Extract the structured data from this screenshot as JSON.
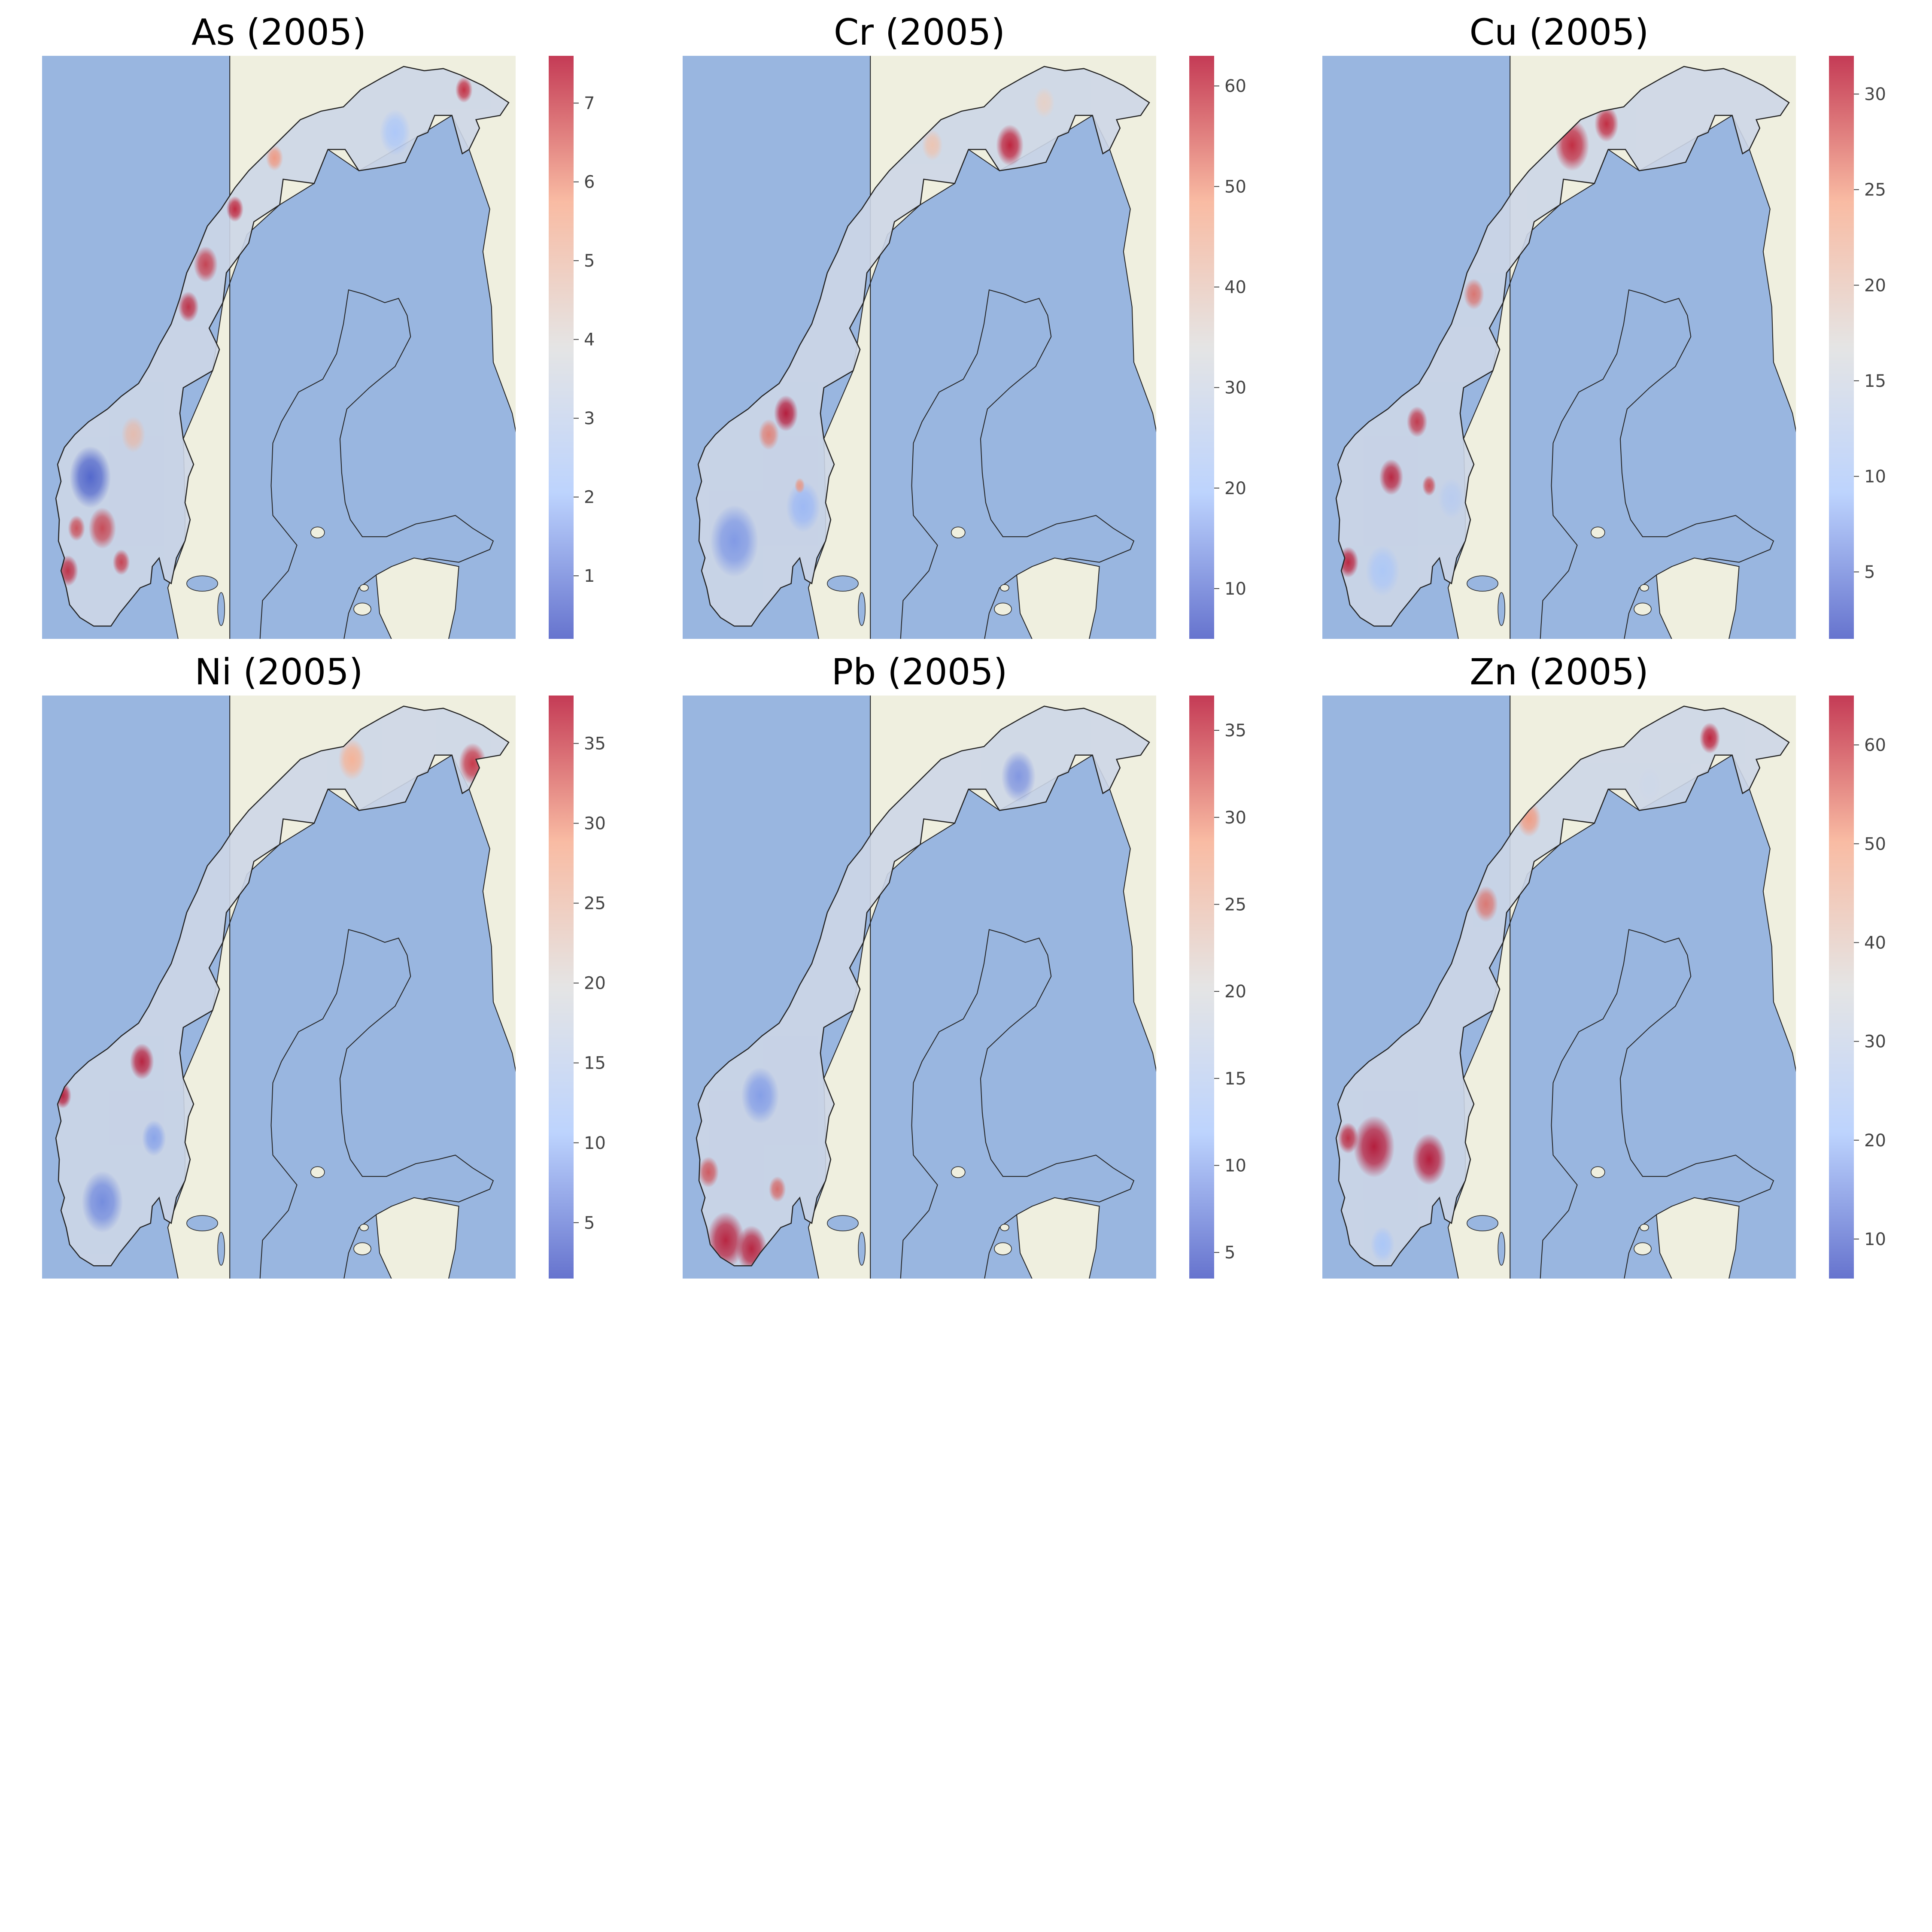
{
  "figure": {
    "panels": [
      {
        "title": "As (2005)",
        "colorbar": {
          "min": 0.2,
          "max": 7.6,
          "ticks": [
            1,
            2,
            3,
            4,
            5,
            6,
            7
          ]
        },
        "hotspots": [
          {
            "lon": 5.5,
            "lat": 59.3,
            "value": 7.2,
            "r": 0.6
          },
          {
            "lon": 6.0,
            "lat": 60.3,
            "value": 6.8,
            "r": 0.5
          },
          {
            "lon": 7.5,
            "lat": 60.3,
            "value": 6.9,
            "r": 0.8
          },
          {
            "lon": 8.6,
            "lat": 59.5,
            "value": 7.0,
            "r": 0.5
          },
          {
            "lon": 12.5,
            "lat": 65.5,
            "value": 7.2,
            "r": 0.6
          },
          {
            "lon": 13.5,
            "lat": 66.5,
            "value": 7.0,
            "r": 0.7
          },
          {
            "lon": 15.2,
            "lat": 67.8,
            "value": 7.4,
            "r": 0.5
          },
          {
            "lon": 17.5,
            "lat": 69.0,
            "value": 6.0,
            "r": 0.5
          },
          {
            "lon": 28.5,
            "lat": 70.6,
            "value": 7.3,
            "r": 0.5
          },
          {
            "lon": 6.8,
            "lat": 61.5,
            "value": 0.5,
            "r": 1.2
          },
          {
            "lon": 24.5,
            "lat": 69.6,
            "value": 2.0,
            "r": 0.9
          },
          {
            "lon": 9.3,
            "lat": 62.5,
            "value": 5.0,
            "r": 0.7
          }
        ]
      },
      {
        "title": "Cr (2005)",
        "colorbar": {
          "min": 5,
          "max": 63,
          "ticks": [
            10,
            20,
            30,
            40,
            50,
            60
          ]
        },
        "hotspots": [
          {
            "lon": 10.0,
            "lat": 63.0,
            "value": 62,
            "r": 0.7
          },
          {
            "lon": 9.0,
            "lat": 62.5,
            "value": 52,
            "r": 0.6
          },
          {
            "lon": 23.0,
            "lat": 69.3,
            "value": 62,
            "r": 0.8
          },
          {
            "lon": 7.0,
            "lat": 60.0,
            "value": 14,
            "r": 1.4
          },
          {
            "lon": 11.0,
            "lat": 60.8,
            "value": 18,
            "r": 1.0
          },
          {
            "lon": 10.8,
            "lat": 61.3,
            "value": 50,
            "r": 0.3
          },
          {
            "lon": 18.5,
            "lat": 69.3,
            "value": 42,
            "r": 0.6
          },
          {
            "lon": 25.0,
            "lat": 70.3,
            "value": 38,
            "r": 0.6
          }
        ]
      },
      {
        "title": "Cu (2005)",
        "colorbar": {
          "min": 1.5,
          "max": 32,
          "ticks": [
            5,
            10,
            15,
            20,
            25,
            30
          ]
        },
        "hotspots": [
          {
            "lon": 5.5,
            "lat": 59.5,
            "value": 31,
            "r": 0.6
          },
          {
            "lon": 8.0,
            "lat": 61.5,
            "value": 31,
            "r": 0.7
          },
          {
            "lon": 9.5,
            "lat": 62.8,
            "value": 30,
            "r": 0.6
          },
          {
            "lon": 10.2,
            "lat": 61.3,
            "value": 29,
            "r": 0.4
          },
          {
            "lon": 12.8,
            "lat": 65.8,
            "value": 27,
            "r": 0.6
          },
          {
            "lon": 18.5,
            "lat": 69.3,
            "value": 31,
            "r": 1.0
          },
          {
            "lon": 20.5,
            "lat": 69.8,
            "value": 31,
            "r": 0.7
          },
          {
            "lon": 7.5,
            "lat": 59.3,
            "value": 10,
            "r": 1.0
          },
          {
            "lon": 11.5,
            "lat": 61.0,
            "value": 12,
            "r": 0.8
          }
        ]
      },
      {
        "title": "Ni (2005)",
        "colorbar": {
          "min": 1.5,
          "max": 38,
          "ticks": [
            5,
            10,
            15,
            20,
            25,
            30,
            35
          ]
        },
        "hotspots": [
          {
            "lon": 5.2,
            "lat": 62.0,
            "value": 37,
            "r": 0.5
          },
          {
            "lon": 9.8,
            "lat": 62.8,
            "value": 37,
            "r": 0.7
          },
          {
            "lon": 29.0,
            "lat": 69.8,
            "value": 36,
            "r": 0.8
          },
          {
            "lon": 7.5,
            "lat": 59.5,
            "value": 6,
            "r": 1.2
          },
          {
            "lon": 22.0,
            "lat": 69.9,
            "value": 28,
            "r": 0.8
          },
          {
            "lon": 10.5,
            "lat": 61.0,
            "value": 8,
            "r": 0.7
          }
        ]
      },
      {
        "title": "Pb (2005)",
        "colorbar": {
          "min": 3.5,
          "max": 37,
          "ticks": [
            5,
            10,
            15,
            20,
            25,
            30,
            35
          ]
        },
        "hotspots": [
          {
            "lon": 6.5,
            "lat": 58.6,
            "value": 36,
            "r": 1.1
          },
          {
            "lon": 8.0,
            "lat": 58.4,
            "value": 36,
            "r": 0.9
          },
          {
            "lon": 5.5,
            "lat": 60.2,
            "value": 33,
            "r": 0.6
          },
          {
            "lon": 9.5,
            "lat": 59.8,
            "value": 32,
            "r": 0.5
          },
          {
            "lon": 8.5,
            "lat": 62.0,
            "value": 9,
            "r": 1.1
          },
          {
            "lon": 23.5,
            "lat": 69.5,
            "value": 8,
            "r": 1.0
          }
        ]
      },
      {
        "title": "Zn (2005)",
        "colorbar": {
          "min": 6,
          "max": 65,
          "ticks": [
            10,
            20,
            30,
            40,
            50,
            60
          ]
        },
        "hotspots": [
          {
            "lon": 7.0,
            "lat": 60.8,
            "value": 64,
            "r": 1.2
          },
          {
            "lon": 10.2,
            "lat": 60.5,
            "value": 64,
            "r": 1.0
          },
          {
            "lon": 5.5,
            "lat": 61.0,
            "value": 62,
            "r": 0.6
          },
          {
            "lon": 26.5,
            "lat": 70.4,
            "value": 64,
            "r": 0.6
          },
          {
            "lon": 13.5,
            "lat": 66.5,
            "value": 55,
            "r": 0.7
          },
          {
            "lon": 7.5,
            "lat": 58.5,
            "value": 22,
            "r": 0.7
          },
          {
            "lon": 23.0,
            "lat": 69.3,
            "value": 30,
            "r": 0.8
          },
          {
            "lon": 16.0,
            "lat": 68.5,
            "value": 52,
            "r": 0.7
          }
        ]
      }
    ]
  },
  "map": {
    "extent": {
      "lon_min": 4.0,
      "lon_max": 31.5,
      "lat_min": 57.7,
      "lat_max": 71.4
    },
    "colors": {
      "ocean": "#99b6e0",
      "land": "#efefdf",
      "coast": "#222222"
    },
    "colormap": [
      "#3b4cc0",
      "#aac7fd",
      "#dddddd",
      "#f7a889",
      "#b40426"
    ],
    "colorscale_note": "coolwarm, alpha 0.75"
  }
}
